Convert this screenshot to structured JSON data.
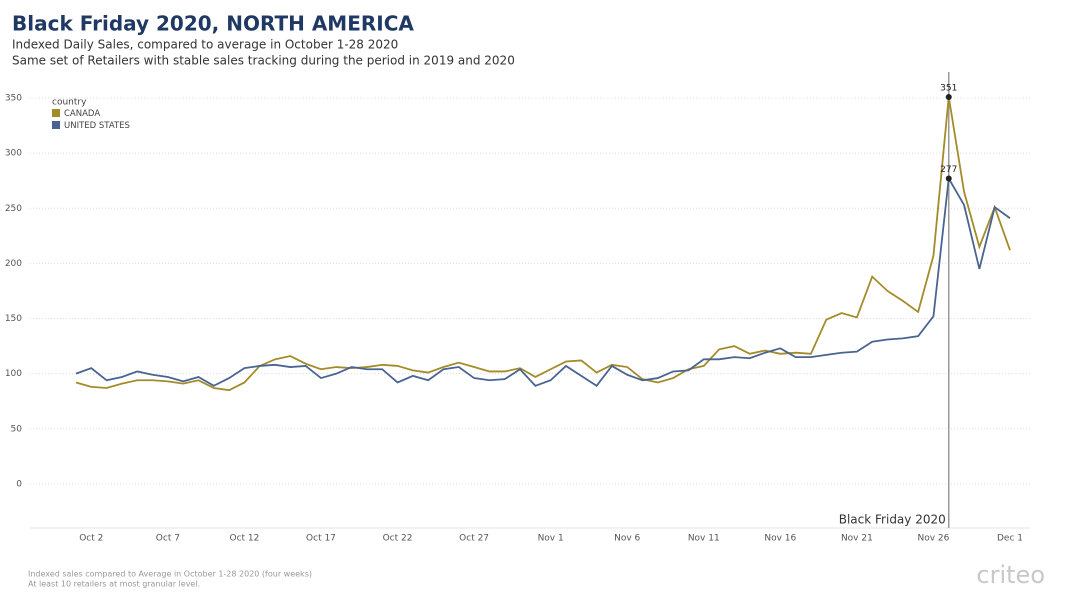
{
  "chart_data": {
    "type": "line",
    "title": "Black Friday 2020, NORTH AMERICA",
    "subtitle": [
      "Indexed Daily Sales, compared to average in October 1-28 2020",
      "Same set of Retailers with stable sales tracking during the period in 2019 and 2020"
    ],
    "legend_title": "country",
    "legend": "top-left",
    "annotation": "Black Friday 2020",
    "footnotes": [
      "Indexed sales compared to Average in October 1-28 2020 (four weeks)",
      "At least 10 retailers at most granular level."
    ],
    "logo": "criteo",
    "categories": [
      null,
      "Oct 2",
      null,
      null,
      null,
      null,
      "Oct 7",
      null,
      null,
      null,
      null,
      "Oct 12",
      null,
      null,
      null,
      null,
      "Oct 17",
      null,
      null,
      null,
      null,
      "Oct 22",
      null,
      null,
      null,
      null,
      "Oct 27",
      null,
      null,
      null,
      null,
      "Nov 1",
      null,
      null,
      null,
      null,
      "Nov 6",
      null,
      null,
      null,
      null,
      "Nov 11",
      null,
      null,
      null,
      null,
      "Nov 16",
      null,
      null,
      null,
      null,
      "Nov 21",
      null,
      null,
      null,
      null,
      "Nov 26",
      null,
      null,
      null,
      null,
      "Dec 1"
    ],
    "series": [
      {
        "name": "CANADA",
        "color": "#a48b2a",
        "values": [
          92,
          88,
          87,
          91,
          94,
          94,
          93,
          91,
          94,
          87,
          85,
          92,
          107,
          113,
          116,
          109,
          104,
          106,
          105,
          106,
          108,
          107,
          103,
          101,
          106,
          110,
          106,
          102,
          102,
          105,
          97,
          104,
          111,
          112,
          101,
          108,
          106,
          95,
          92,
          96,
          104,
          107,
          122,
          125,
          118,
          121,
          118,
          119,
          118,
          149,
          155,
          151,
          188,
          175,
          166,
          156,
          207,
          351,
          265,
          215,
          251,
          212
        ]
      },
      {
        "name": "UNITED STATES",
        "color": "#4a6491",
        "values": [
          100,
          105,
          94,
          97,
          102,
          99,
          97,
          93,
          97,
          89,
          96,
          105,
          107,
          108,
          106,
          107,
          96,
          100,
          106,
          104,
          104,
          92,
          98,
          94,
          104,
          106,
          96,
          94,
          95,
          104,
          89,
          94,
          107,
          98,
          89,
          107,
          99,
          94,
          96,
          102,
          103,
          113,
          113,
          115,
          114,
          119,
          123,
          115,
          115,
          117,
          119,
          120,
          129,
          131,
          132,
          134,
          152,
          277,
          253,
          195,
          251,
          241
        ]
      }
    ],
    "ylim": [
      -40,
      370
    ],
    "yticks": [
      0,
      50,
      100,
      150,
      200,
      250,
      300,
      350
    ],
    "grid": true
  }
}
